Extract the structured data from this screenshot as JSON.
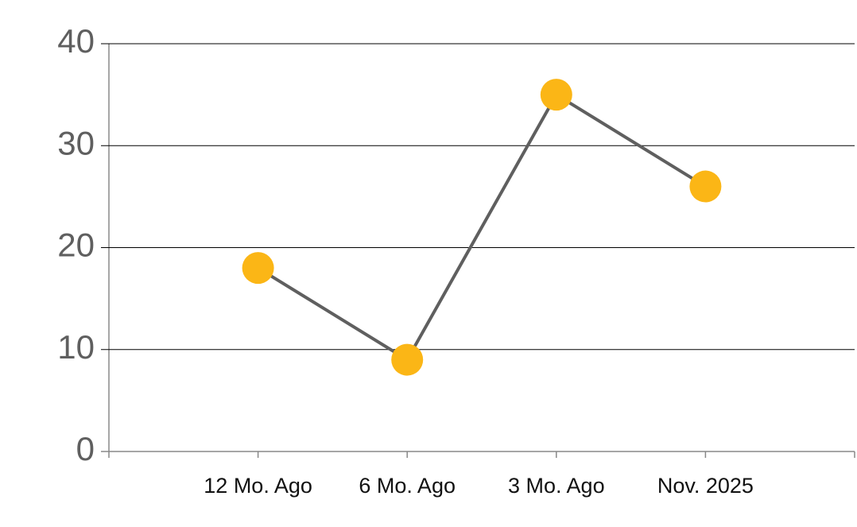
{
  "chart_data": {
    "type": "line",
    "categories": [
      "12 Mo. Ago",
      "6 Mo. Ago",
      "3 Mo. Ago",
      "Nov. 2025"
    ],
    "values": [
      18,
      9,
      35,
      26
    ],
    "color": "#fbb616",
    "line_color": "#5f5f5f",
    "ylim": [
      0,
      40
    ],
    "yticks": [
      0,
      10,
      20,
      30,
      40
    ],
    "grid": true
  }
}
